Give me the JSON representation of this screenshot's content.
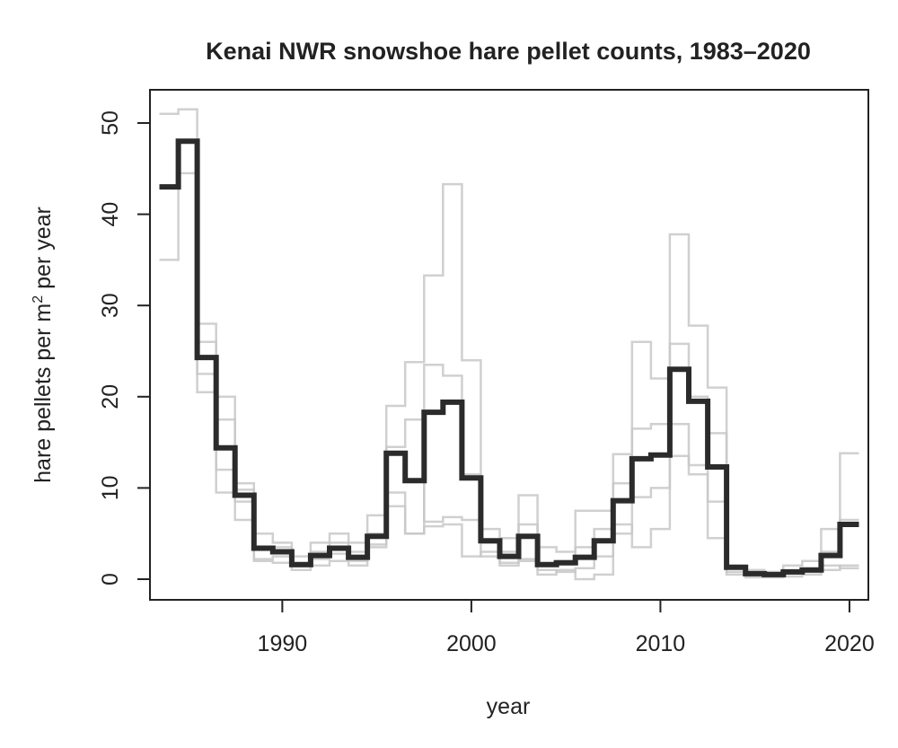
{
  "chart_data": {
    "type": "line",
    "step": true,
    "title": "Kenai NWR snowshoe hare pellet counts, 1983–2020",
    "xlabel": "year",
    "ylabel_main": "hare pellets per m",
    "ylabel_sup": "2",
    "ylabel_tail": " per year",
    "xlim": [
      1983,
      2021
    ],
    "ylim": [
      0,
      52
    ],
    "x_ticks": [
      1990,
      2000,
      2010,
      2020
    ],
    "y_ticks": [
      0,
      10,
      20,
      30,
      40,
      50
    ],
    "grid": false,
    "legend": "none",
    "x": [
      1984,
      1985,
      1986,
      1987,
      1988,
      1989,
      1990,
      1991,
      1992,
      1993,
      1994,
      1995,
      1996,
      1997,
      1998,
      1999,
      2000,
      2001,
      2002,
      2003,
      2004,
      2005,
      2006,
      2007,
      2008,
      2009,
      2010,
      2011,
      2012,
      2013,
      2014,
      2015,
      2016,
      2017,
      2018,
      2019,
      2020
    ],
    "series": [
      {
        "role": "mean",
        "color": "#2b2b2b",
        "values": [
          43,
          48,
          24.3,
          14.4,
          9.2,
          3.4,
          3,
          1.6,
          2.6,
          3.4,
          2.4,
          4.7,
          13.8,
          10.8,
          18.3,
          19.4,
          11.1,
          4.2,
          2.5,
          4.7,
          1.6,
          1.8,
          2.4,
          4.2,
          8.6,
          13.2,
          13.6,
          23,
          19.5,
          12.3,
          1.3,
          0.6,
          0.5,
          0.8,
          1,
          2.6,
          6
        ]
      },
      {
        "role": "site",
        "color": "#c8c8c8",
        "values": [
          51,
          51.5,
          28,
          20,
          10.5,
          5,
          4,
          2.5,
          4,
          5,
          4,
          7,
          19,
          23.8,
          33.3,
          43.3,
          24,
          5.5,
          4.5,
          9.2,
          3.5,
          3,
          7.5,
          7.5,
          13.7,
          26,
          22,
          37.8,
          27.8,
          21,
          1.5,
          1,
          0.8,
          1.5,
          2,
          5.5,
          13.8
        ]
      },
      {
        "role": "site",
        "color": "#c8c8c8",
        "values": [
          35,
          44.5,
          20.5,
          9.5,
          6.5,
          2,
          1.8,
          1,
          1.5,
          2,
          1.5,
          3.5,
          9.5,
          5,
          23.5,
          22.3,
          11.5,
          2.5,
          1.5,
          2,
          0.5,
          1,
          0,
          0.5,
          5,
          9,
          10,
          13.5,
          11.5,
          4.5,
          0.5,
          0.2,
          0.2,
          0.3,
          0.5,
          1,
          1.5
        ]
      },
      {
        "role": "site",
        "color": "#c8c8c8",
        "values": [
          43,
          48,
          26,
          17.5,
          8.5,
          3.5,
          3.5,
          1.5,
          3,
          4,
          3,
          5,
          14.5,
          17.5,
          6.3,
          6.8,
          6.5,
          4,
          3,
          6,
          1.5,
          2,
          3.5,
          5.5,
          10.5,
          16.5,
          17,
          25.8,
          20,
          16,
          1.3,
          0.6,
          0.5,
          0.7,
          1,
          3,
          6.5
        ]
      },
      {
        "role": "site",
        "color": "#c8c8c8",
        "values": [
          43,
          48,
          22.5,
          12,
          9.8,
          2.2,
          2.5,
          1.4,
          2.2,
          2.8,
          2,
          3.8,
          8,
          5,
          5.8,
          6,
          2.5,
          3,
          1.8,
          2.2,
          1,
          0.8,
          1.2,
          2.5,
          6,
          3.5,
          5.5,
          17,
          12.5,
          8.5,
          0.8,
          0.5,
          0.3,
          0.6,
          0.8,
          1.5,
          1.2
        ]
      }
    ]
  }
}
